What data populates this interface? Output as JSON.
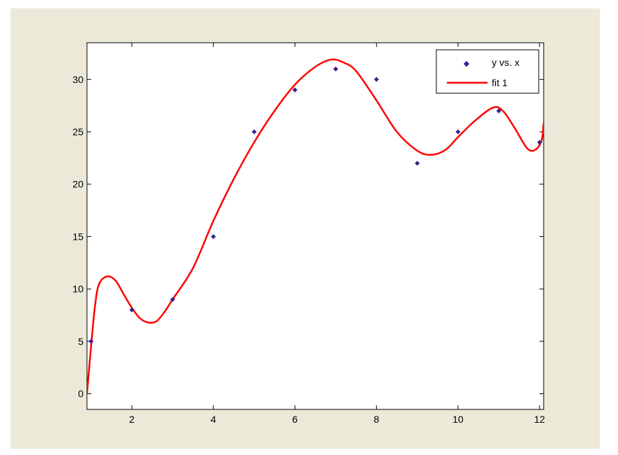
{
  "colors": {
    "figure_background": "#ece9d8",
    "axes_background": "#ffffff",
    "axis_color": "#000000",
    "marker_color": "#3f1f8f",
    "fit_color": "#ff0000"
  },
  "chart_data": {
    "type": "scatter",
    "title": "",
    "xlabel": "",
    "ylabel": "",
    "xlim": [
      0.9,
      12.1
    ],
    "ylim": [
      -1.5,
      33.5
    ],
    "xticks": [
      2,
      4,
      6,
      8,
      10,
      12
    ],
    "yticks": [
      0,
      5,
      10,
      15,
      20,
      25,
      30
    ],
    "grid": false,
    "legend_position": "top-right",
    "series": [
      {
        "name": "y vs. x",
        "kind": "points",
        "marker": "diamond",
        "x": [
          1,
          2,
          3,
          4,
          5,
          6,
          7,
          8,
          9,
          10,
          11,
          12
        ],
        "y": [
          5,
          8,
          9,
          15,
          25,
          29,
          31,
          30,
          22,
          25,
          27,
          24
        ]
      },
      {
        "name": "fit 1",
        "kind": "line",
        "x": [
          0.9,
          1.0,
          1.1,
          1.2,
          1.4,
          1.6,
          1.8,
          2.0,
          2.2,
          2.4,
          2.6,
          2.8,
          3.0,
          3.5,
          4.0,
          4.5,
          5.0,
          5.5,
          6.0,
          6.5,
          6.9,
          7.2,
          7.5,
          8.0,
          8.5,
          9.0,
          9.35,
          9.7,
          10.0,
          10.4,
          10.85,
          11.1,
          11.4,
          11.7,
          11.9,
          12.05,
          12.1
        ],
        "y": [
          0.0,
          4.5,
          8.5,
          10.5,
          11.2,
          10.8,
          9.5,
          8.2,
          7.2,
          6.8,
          6.9,
          7.8,
          9.0,
          12.0,
          16.5,
          20.5,
          24.0,
          27.0,
          29.5,
          31.2,
          31.9,
          31.6,
          30.8,
          28.0,
          25.0,
          23.2,
          22.8,
          23.3,
          24.5,
          26.0,
          27.3,
          27.0,
          25.3,
          23.4,
          23.3,
          24.2,
          25.8
        ]
      }
    ]
  }
}
